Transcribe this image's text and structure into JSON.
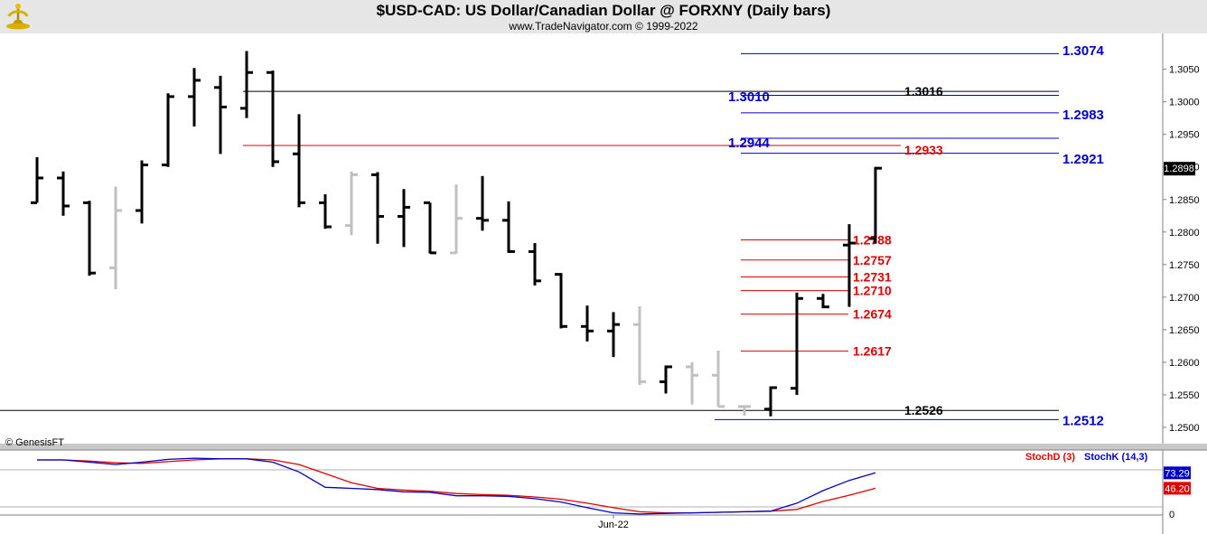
{
  "header": {
    "title": "$USD-CAD:  US Dollar/Canadian Dollar @ FORXNY  (Daily bars)",
    "subtitle": "www.TradeNavigator.com © 1999-2022",
    "logo_icon": "trade-navigator-logo-icon"
  },
  "copyright": "© GenesisFT",
  "chart_data": {
    "type": "ohlc-bar",
    "symbol": "$USD-CAD",
    "ylim": [
      1.2475,
      1.3105
    ],
    "y_ticks": [
      "1.2500",
      "1.2550",
      "1.2600",
      "1.2650",
      "1.2700",
      "1.2750",
      "1.2800",
      "1.2850",
      "1.2900",
      "1.2950",
      "1.3000",
      "1.3050"
    ],
    "last_price_label": "1.2898",
    "x_tick_label": "Jun-22",
    "x_tick_bar_index": 22,
    "bars": [
      {
        "o": 1.2845,
        "h": 1.2915,
        "l": 1.2845,
        "c": 1.2883,
        "color": "black"
      },
      {
        "o": 1.2883,
        "h": 1.2893,
        "l": 1.2825,
        "c": 1.284,
        "color": "black"
      },
      {
        "o": 1.2845,
        "h": 1.2848,
        "l": 1.2733,
        "c": 1.2737,
        "color": "black"
      },
      {
        "o": 1.2745,
        "h": 1.287,
        "l": 1.2712,
        "c": 1.2833,
        "color": "gray"
      },
      {
        "o": 1.2833,
        "h": 1.291,
        "l": 1.2813,
        "c": 1.2903,
        "color": "black"
      },
      {
        "o": 1.2903,
        "h": 1.3013,
        "l": 1.29,
        "c": 1.3008,
        "color": "black"
      },
      {
        "o": 1.3008,
        "h": 1.3052,
        "l": 1.2962,
        "c": 1.3033,
        "color": "black"
      },
      {
        "o": 1.3022,
        "h": 1.304,
        "l": 1.292,
        "c": 1.2992,
        "color": "black"
      },
      {
        "o": 1.299,
        "h": 1.3078,
        "l": 1.2975,
        "c": 1.3045,
        "color": "black"
      },
      {
        "o": 1.3045,
        "h": 1.3048,
        "l": 1.29,
        "c": 1.2908,
        "color": "black"
      },
      {
        "o": 1.292,
        "h": 1.2981,
        "l": 1.2838,
        "c": 1.2845,
        "color": "black"
      },
      {
        "o": 1.2845,
        "h": 1.2858,
        "l": 1.2805,
        "c": 1.2808,
        "color": "black"
      },
      {
        "o": 1.281,
        "h": 1.2893,
        "l": 1.2795,
        "c": 1.2888,
        "color": "gray"
      },
      {
        "o": 1.2888,
        "h": 1.2892,
        "l": 1.2782,
        "c": 1.2824,
        "color": "black"
      },
      {
        "o": 1.2824,
        "h": 1.2866,
        "l": 1.2777,
        "c": 1.2838,
        "color": "black"
      },
      {
        "o": 1.2845,
        "h": 1.2845,
        "l": 1.2767,
        "c": 1.2768,
        "color": "black"
      },
      {
        "o": 1.2768,
        "h": 1.2873,
        "l": 1.2767,
        "c": 1.2821,
        "color": "gray"
      },
      {
        "o": 1.2821,
        "h": 1.2886,
        "l": 1.2802,
        "c": 1.2818,
        "color": "black"
      },
      {
        "o": 1.2818,
        "h": 1.2847,
        "l": 1.2768,
        "c": 1.277,
        "color": "black"
      },
      {
        "o": 1.277,
        "h": 1.2783,
        "l": 1.2718,
        "c": 1.2725,
        "color": "black"
      },
      {
        "o": 1.2735,
        "h": 1.2737,
        "l": 1.2652,
        "c": 1.2655,
        "color": "black"
      },
      {
        "o": 1.2655,
        "h": 1.2687,
        "l": 1.2632,
        "c": 1.2648,
        "color": "black"
      },
      {
        "o": 1.2648,
        "h": 1.2677,
        "l": 1.2608,
        "c": 1.2658,
        "color": "black"
      },
      {
        "o": 1.2658,
        "h": 1.2686,
        "l": 1.2565,
        "c": 1.257,
        "color": "gray"
      },
      {
        "o": 1.257,
        "h": 1.2595,
        "l": 1.2552,
        "c": 1.2593,
        "color": "black"
      },
      {
        "o": 1.2593,
        "h": 1.26,
        "l": 1.2535,
        "c": 1.258,
        "color": "gray"
      },
      {
        "o": 1.258,
        "h": 1.2618,
        "l": 1.2532,
        "c": 1.2532,
        "color": "gray"
      },
      {
        "o": 1.2532,
        "h": 1.2532,
        "l": 1.2518,
        "c": 1.2532,
        "color": "gray"
      },
      {
        "o": 1.2528,
        "h": 1.2563,
        "l": 1.2517,
        "c": 1.2561,
        "color": "black"
      },
      {
        "o": 1.256,
        "h": 1.2707,
        "l": 1.255,
        "c": 1.2698,
        "color": "black"
      },
      {
        "o": 1.2698,
        "h": 1.2705,
        "l": 1.2683,
        "c": 1.2685,
        "color": "black"
      },
      {
        "o": 1.278,
        "h": 1.2812,
        "l": 1.2685,
        "c": 1.2783,
        "color": "black"
      },
      {
        "o": 1.279,
        "h": 1.29,
        "l": 1.2782,
        "c": 1.2898,
        "color": "black"
      }
    ],
    "levels": [
      {
        "label": "1.3074",
        "value": 1.3074,
        "color": "#0000c8",
        "start_bar": 27
      },
      {
        "label": "1.3016",
        "value": 1.3016,
        "color": "#000000",
        "start_bar": 8
      },
      {
        "label": "1.3010",
        "value": 1.301,
        "color": "#0000c8",
        "start_bar": 27
      },
      {
        "label": "1.2983",
        "value": 1.2983,
        "color": "#0000c8",
        "start_bar": 27
      },
      {
        "label": "1.2944",
        "value": 1.2944,
        "color": "#0000c8",
        "start_bar": 27
      },
      {
        "label": "1.2933",
        "value": 1.2933,
        "color": "#e00000",
        "start_bar": 8
      },
      {
        "label": "1.2921",
        "value": 1.2921,
        "color": "#0000c8",
        "start_bar": 27
      },
      {
        "label": "1.2788",
        "value": 1.2788,
        "color": "#e00000",
        "start_bar": 27
      },
      {
        "label": "1.2757",
        "value": 1.2757,
        "color": "#e00000",
        "start_bar": 27
      },
      {
        "label": "1.2731",
        "value": 1.2731,
        "color": "#e00000",
        "start_bar": 27
      },
      {
        "label": "1.2710",
        "value": 1.271,
        "color": "#e00000",
        "start_bar": 27
      },
      {
        "label": "1.2674",
        "value": 1.2674,
        "color": "#e00000",
        "start_bar": 27
      },
      {
        "label": "1.2617",
        "value": 1.2617,
        "color": "#e00000",
        "start_bar": 27
      },
      {
        "label": "1.2526",
        "value": 1.2526,
        "color": "#000000",
        "start_bar": 0
      },
      {
        "label": "1.2512",
        "value": 1.2512,
        "color": "#0000c8",
        "start_bar": 26
      }
    ],
    "stochastic": {
      "legend": [
        {
          "name": "StochD (3)",
          "color": "#e00000"
        },
        {
          "name": "StochK (14,3)",
          "color": "#0000c8"
        }
      ],
      "ylim": [
        0,
        100
      ],
      "zero_label": "0",
      "k_label": "73.29",
      "d_label": "46.20",
      "k": [
        96,
        96,
        92,
        88,
        92,
        97,
        99,
        98,
        98,
        92,
        75,
        48,
        46,
        44,
        40,
        39,
        33,
        33,
        32,
        28,
        22,
        12,
        3,
        1,
        2,
        3,
        4,
        5,
        6,
        20,
        42,
        60,
        73.29
      ],
      "d": [
        96,
        96,
        94,
        91,
        90,
        93,
        96,
        98,
        98,
        96,
        88,
        72,
        56,
        46,
        43,
        41,
        37,
        35,
        34,
        31,
        27,
        20,
        12,
        5,
        3,
        3,
        4,
        5,
        6,
        9,
        23,
        34,
        46.2
      ]
    }
  }
}
